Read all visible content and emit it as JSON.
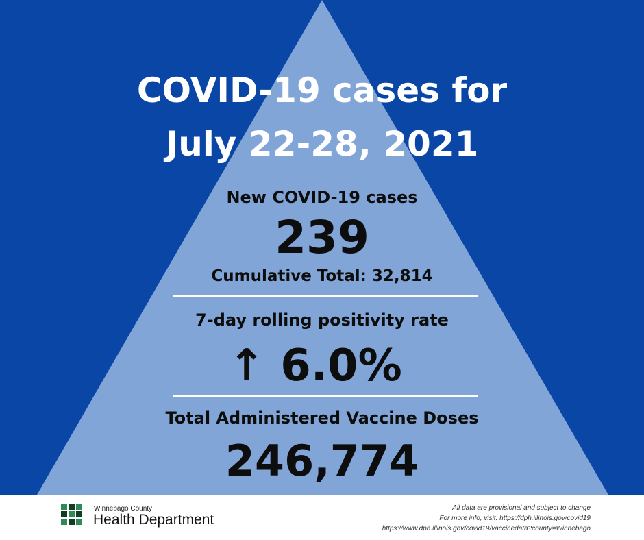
{
  "colors": {
    "background": "#0a46a6",
    "pyramid": "#82a5d8",
    "title": "#ffffff",
    "text": "#0d0d0d",
    "logo_green": "#2e8b57",
    "logo_dark": "#123d22"
  },
  "title": {
    "line1": "COVID-19 cases for",
    "line2": "July 22-28, 2021"
  },
  "new_cases": {
    "label": "New COVID-19 cases",
    "value": "239",
    "cumulative": "Cumulative Total: 32,814"
  },
  "positivity": {
    "label": "7-day rolling positivity rate",
    "trend_icon": "arrow-up-icon",
    "value": "↑ 6.0%"
  },
  "vaccine": {
    "label": "Total Administered Vaccine Doses",
    "value": "246,774"
  },
  "footer": {
    "org_small": "Winnebago County",
    "org_name": "Health Department",
    "logo_icon": "health-department-logo-icon",
    "disclaimer": "All data are provisional and subject to change",
    "more_info": "For more info, visit: https://dph.illinois.gov/covid19",
    "vaccine_url": "https://www.dph.illinois.gov/covid19/vaccinedata?county=Winnebago"
  }
}
